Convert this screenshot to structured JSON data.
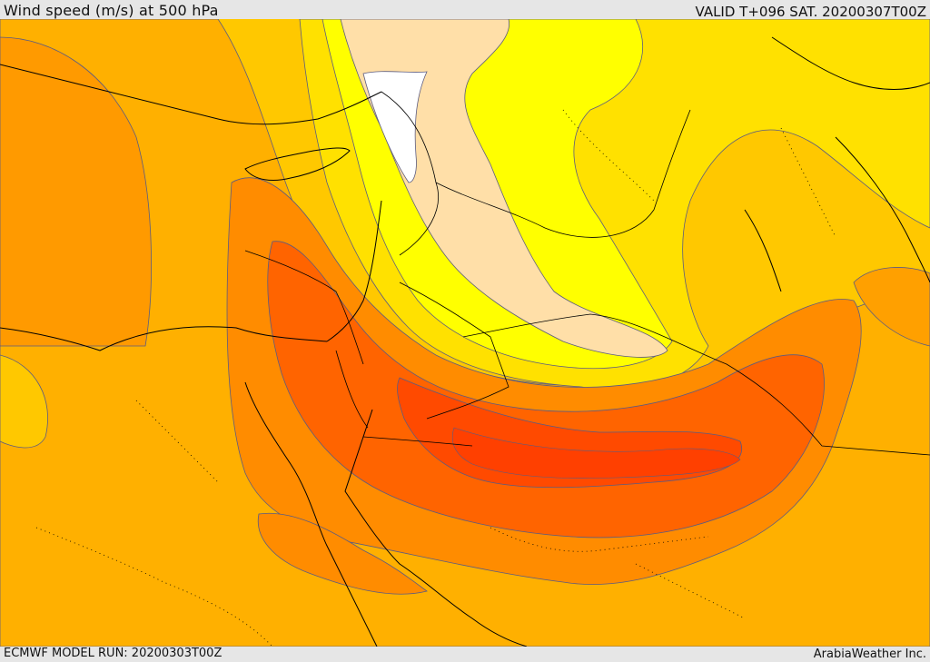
{
  "header": {
    "title": "Wind speed (m/s) at 500 hPa",
    "valid": "VALID T+096 SAT. 20200307T00Z"
  },
  "footer": {
    "model_run": "ECMWF MODEL RUN: 20200303T00Z",
    "credit": "ArabiaWeather Inc."
  },
  "map": {
    "colors": {
      "pale": "#ffdfa8",
      "light_yellow": "#ffff00",
      "yellow": "#ffe100",
      "gold": "#ffc800",
      "orange_light": "#ffb000",
      "orange": "#ff8c00",
      "orange_dark": "#ff6a00",
      "red_orange": "#ff5a00",
      "red": "#ff4000",
      "contour": "#5c5c80",
      "border": "#000000"
    }
  }
}
